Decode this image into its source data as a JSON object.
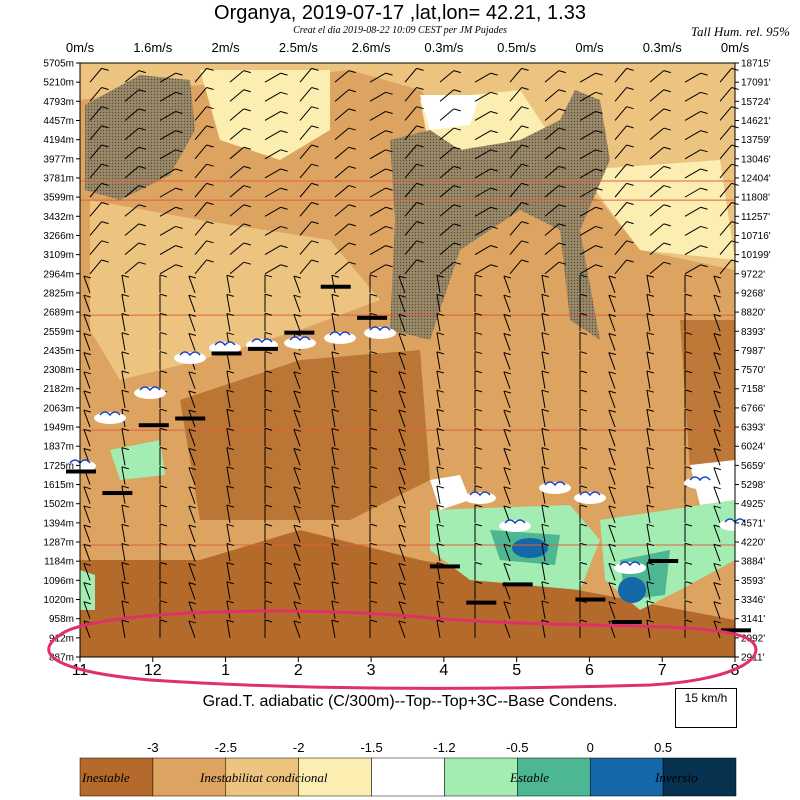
{
  "title": "Organya, 2019-07-17 ,lat,lon= 42.21, 1.33",
  "subtitle": "Creat el dia 2019-08-22 10:09 CEST per JM Pujades",
  "note": "Tall Hum. rel. 95%",
  "bottom_label": "Grad.T. adiabatic (C/300m)--Top--Top+3C--Base Condens.",
  "scale_label": "15 km/h",
  "chart_data": {
    "type": "heatmap",
    "x_categories": [
      "11",
      "12",
      "1",
      "2",
      "3",
      "4",
      "5",
      "6",
      "7",
      "8"
    ],
    "top_wind_labels": [
      "0m/s",
      "1.6m/s",
      "2m/s",
      "2.5m/s",
      "2.6m/s",
      "0.3m/s",
      "0.5m/s",
      "0m/s",
      "0.3m/s",
      "0m/s"
    ],
    "y_left_labels": [
      "5705m",
      "5210m",
      "4793m",
      "4457m",
      "4194m",
      "3977m",
      "3781m",
      "3599m",
      "3432m",
      "3266m",
      "3109m",
      "2964m",
      "2825m",
      "2689m",
      "2559m",
      "2435m",
      "2308m",
      "2182m",
      "2063m",
      "1949m",
      "1837m",
      "1725m",
      "1615m",
      "1502m",
      "1394m",
      "1287m",
      "1184m",
      "1096m",
      "1020m",
      "958m",
      "912m",
      "887m"
    ],
    "y_right_labels": [
      "18715'",
      "17091'",
      "15724'",
      "14621'",
      "13759'",
      "13046'",
      "12404'",
      "11808'",
      "11257'",
      "10716'",
      "10199'",
      "9722'",
      "9268'",
      "8820'",
      "8393'",
      "7987'",
      "7570'",
      "7158'",
      "6766'",
      "6393'",
      "6024'",
      "5659'",
      "5298'",
      "4925'",
      "4571'",
      "4220'",
      "3884'",
      "3593'",
      "3346'",
      "3141'",
      "2992'",
      "2911'"
    ],
    "legend": {
      "ticks": [
        "-3",
        "-2.5",
        "-2",
        "-1.5",
        "-1.2",
        "-0.5",
        "0",
        "0.5"
      ],
      "colors": [
        "#b36a2a",
        "#dda361",
        "#edc47f",
        "#fbeeb0",
        "#ffffff",
        "#a3ecb2",
        "#4db693",
        "#1468a8",
        "#06324f"
      ],
      "category_labels": [
        "Inestable",
        "Inestabilitat condicional",
        "Estable",
        "Inversio"
      ]
    },
    "colors": {
      "very_unstable": "#b36a2a",
      "unstable": "#dda361",
      "conditional": "#edc47f",
      "neutral": "#fbeeb0",
      "stable": "#a3ecb2",
      "strong_stable": "#4db693",
      "inversion": "#1468a8",
      "strong_inversion": "#06324f",
      "humid_hatch": "#8c7b5e",
      "level_line": "#e06040",
      "highlight": "#e0306a"
    },
    "top_level_bars": [
      {
        "x": "11",
        "y_m": 1690
      },
      {
        "x": "11.5",
        "y_m": 1565
      },
      {
        "x": "12",
        "y_m": 1960
      },
      {
        "x": "12.5",
        "y_m": 2000
      },
      {
        "x": "1",
        "y_m": 2415
      },
      {
        "x": "1.5",
        "y_m": 2445
      },
      {
        "x": "2",
        "y_m": 2550
      },
      {
        "x": "2.5",
        "y_m": 2870
      },
      {
        "x": "3",
        "y_m": 2650
      },
      {
        "x": "4",
        "y_m": 1160
      },
      {
        "x": "4.5",
        "y_m": 1010
      },
      {
        "x": "5",
        "y_m": 1080
      },
      {
        "x": "6",
        "y_m": 1020
      },
      {
        "x": "6.5",
        "y_m": 950
      },
      {
        "x": "7",
        "y_m": 1185
      },
      {
        "x": "8",
        "y_m": 930
      }
    ]
  }
}
